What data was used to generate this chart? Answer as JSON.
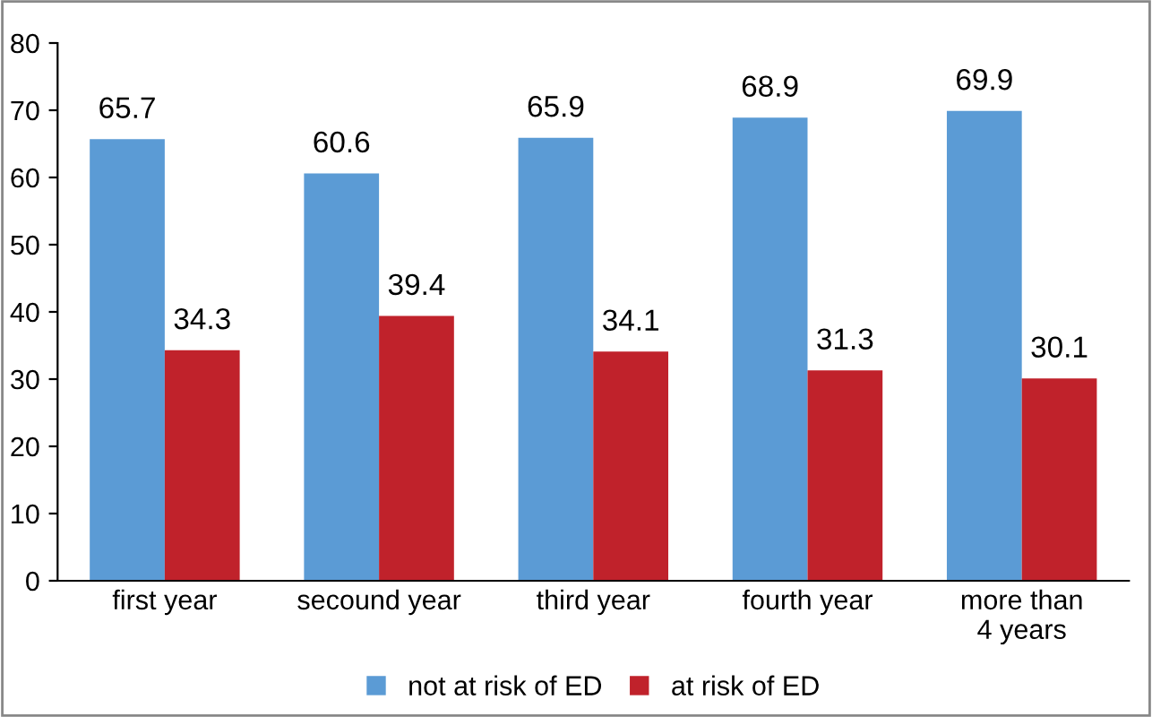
{
  "chart_data": {
    "type": "bar",
    "categories": [
      "first year",
      "secound year",
      "third year",
      "fourth year",
      "more than\n4 years"
    ],
    "series": [
      {
        "name": "not at risk of ED",
        "color": "#5b9bd5",
        "values": [
          65.7,
          60.6,
          65.9,
          68.9,
          69.9
        ]
      },
      {
        "name": "at risk of ED",
        "color": "#c0222b",
        "values": [
          34.3,
          39.4,
          34.1,
          31.3,
          30.1
        ]
      }
    ],
    "ylim": [
      0,
      80
    ],
    "yticks": [
      0,
      10,
      20,
      30,
      40,
      50,
      60,
      70,
      80
    ],
    "data_labels": true,
    "grid": false,
    "legend": "bottom"
  }
}
